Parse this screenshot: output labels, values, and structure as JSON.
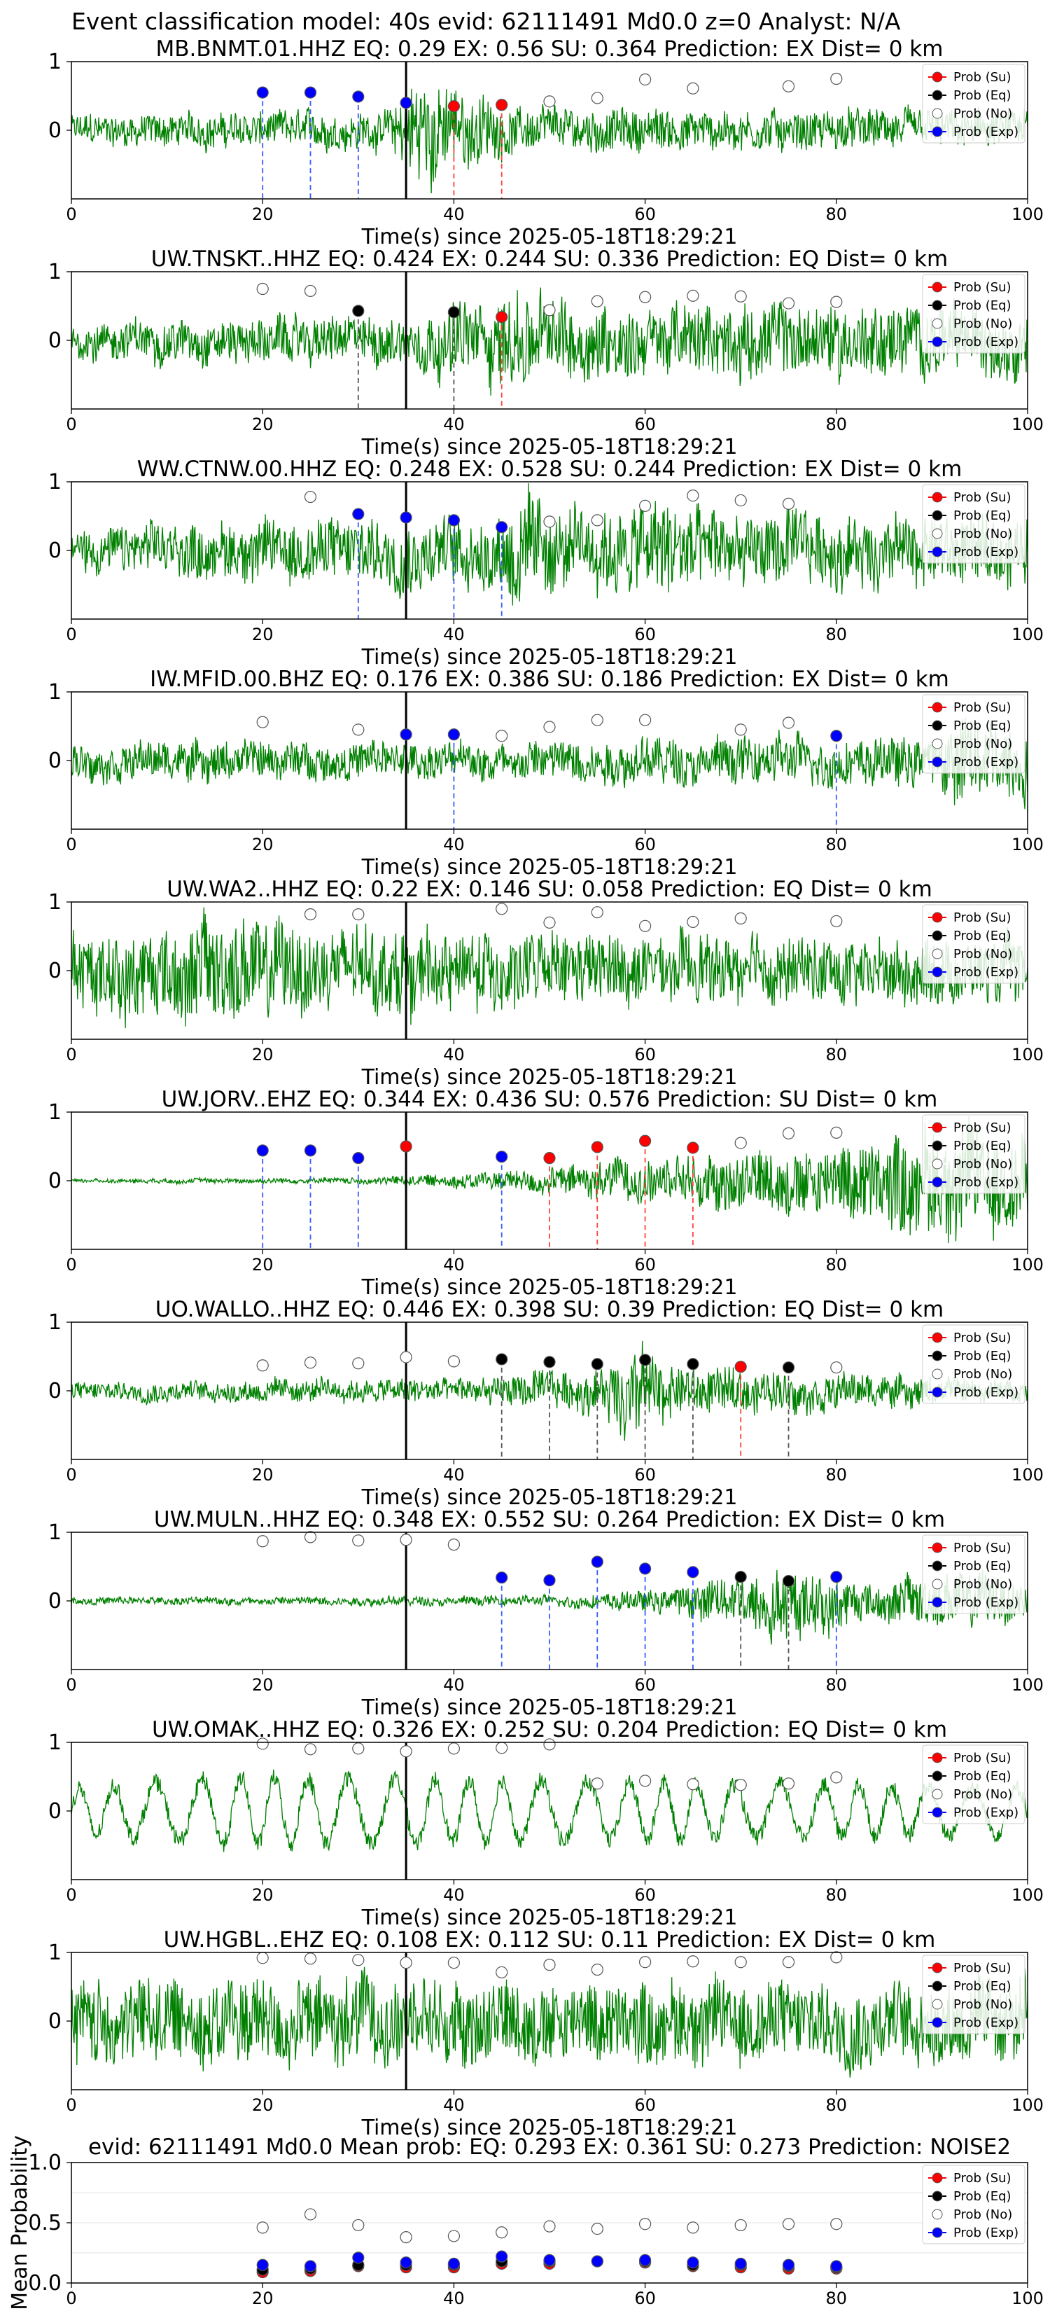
{
  "figure": {
    "suptitle": "Event classification model: 40s evid: 62111491 Md0.0 z=0 Analyst: N/A"
  },
  "colors": {
    "waveform": "#008000",
    "su": "#ff0000",
    "eq": "#000000",
    "no": "#ffffff",
    "exp": "#0000ff",
    "onset": "#000000"
  },
  "chart_data": {
    "type": "line",
    "station_panels": [
      {
        "title": "MB.BNMT.01.HHZ   EQ: 0.29  EX: 0.56  SU: 0.364   Prediction: EX    Dist= 0 km",
        "xlabel": "Time(s) since 2025-05-18T18:29:21",
        "xlim": [
          0,
          100
        ],
        "ylim": [
          -1,
          1
        ],
        "xticks": [
          0,
          20,
          40,
          60,
          80,
          100
        ],
        "yticks": [
          0,
          1
        ],
        "onset": 35,
        "markers": [
          {
            "x": 20,
            "y": 0.55,
            "cls": "exp"
          },
          {
            "x": 25,
            "y": 0.55,
            "cls": "exp"
          },
          {
            "x": 30,
            "y": 0.49,
            "cls": "exp"
          },
          {
            "x": 35,
            "y": 0.4,
            "cls": "exp"
          },
          {
            "x": 40,
            "y": 0.35,
            "cls": "su"
          },
          {
            "x": 45,
            "y": 0.37,
            "cls": "su"
          },
          {
            "x": 50,
            "y": 0.42,
            "cls": "no"
          },
          {
            "x": 55,
            "y": 0.47,
            "cls": "no"
          },
          {
            "x": 60,
            "y": 0.74,
            "cls": "no"
          },
          {
            "x": 65,
            "y": 0.61,
            "cls": "no"
          },
          {
            "x": 75,
            "y": 0.64,
            "cls": "no"
          },
          {
            "x": 80,
            "y": 0.75,
            "cls": "no"
          }
        ],
        "legend": [
          "Prob (Su)",
          "Prob (Eq)",
          "Prob (No)",
          "Prob (Exp)"
        ]
      },
      {
        "title": "UW.TNSKT..HHZ   EQ: 0.424  EX: 0.244  SU: 0.336   Prediction: EQ    Dist= 0 km",
        "xlabel": "Time(s) since 2025-05-18T18:29:21",
        "xlim": [
          0,
          100
        ],
        "ylim": [
          -1,
          1
        ],
        "xticks": [
          0,
          20,
          40,
          60,
          80,
          100
        ],
        "yticks": [
          0,
          1
        ],
        "onset": 35,
        "markers": [
          {
            "x": 20,
            "y": 0.75,
            "cls": "no"
          },
          {
            "x": 25,
            "y": 0.72,
            "cls": "no"
          },
          {
            "x": 30,
            "y": 0.43,
            "cls": "eq"
          },
          {
            "x": 40,
            "y": 0.41,
            "cls": "eq"
          },
          {
            "x": 45,
            "y": 0.34,
            "cls": "su"
          },
          {
            "x": 50,
            "y": 0.44,
            "cls": "no"
          },
          {
            "x": 55,
            "y": 0.57,
            "cls": "no"
          },
          {
            "x": 60,
            "y": 0.63,
            "cls": "no"
          },
          {
            "x": 65,
            "y": 0.65,
            "cls": "no"
          },
          {
            "x": 70,
            "y": 0.64,
            "cls": "no"
          },
          {
            "x": 75,
            "y": 0.54,
            "cls": "no"
          },
          {
            "x": 80,
            "y": 0.56,
            "cls": "no"
          }
        ],
        "legend": [
          "Prob (Su)",
          "Prob (Eq)",
          "Prob (No)",
          "Prob (Exp)"
        ]
      },
      {
        "title": "WW.CTNW.00.HHZ   EQ: 0.248  EX: 0.528  SU: 0.244   Prediction: EX    Dist= 0 km",
        "xlabel": "Time(s) since 2025-05-18T18:29:21",
        "xlim": [
          0,
          100
        ],
        "ylim": [
          -1,
          1
        ],
        "xticks": [
          0,
          20,
          40,
          60,
          80,
          100
        ],
        "yticks": [
          0,
          1
        ],
        "onset": 35,
        "markers": [
          {
            "x": 25,
            "y": 0.78,
            "cls": "no"
          },
          {
            "x": 30,
            "y": 0.53,
            "cls": "exp"
          },
          {
            "x": 35,
            "y": 0.48,
            "cls": "exp"
          },
          {
            "x": 40,
            "y": 0.44,
            "cls": "exp"
          },
          {
            "x": 45,
            "y": 0.34,
            "cls": "exp"
          },
          {
            "x": 50,
            "y": 0.42,
            "cls": "no"
          },
          {
            "x": 55,
            "y": 0.44,
            "cls": "no"
          },
          {
            "x": 60,
            "y": 0.65,
            "cls": "no"
          },
          {
            "x": 65,
            "y": 0.8,
            "cls": "no"
          },
          {
            "x": 70,
            "y": 0.73,
            "cls": "no"
          },
          {
            "x": 75,
            "y": 0.68,
            "cls": "no"
          }
        ],
        "legend": [
          "Prob (Su)",
          "Prob (Eq)",
          "Prob (No)",
          "Prob (Exp)"
        ]
      },
      {
        "title": "IW.MFID.00.BHZ   EQ: 0.176  EX: 0.386  SU: 0.186   Prediction: EX    Dist= 0 km",
        "xlabel": "Time(s) since 2025-05-18T18:29:21",
        "xlim": [
          0,
          100
        ],
        "ylim": [
          -1,
          1
        ],
        "xticks": [
          0,
          20,
          40,
          60,
          80,
          100
        ],
        "yticks": [
          0,
          1
        ],
        "onset": 35,
        "markers": [
          {
            "x": 20,
            "y": 0.56,
            "cls": "no"
          },
          {
            "x": 30,
            "y": 0.45,
            "cls": "no"
          },
          {
            "x": 35,
            "y": 0.38,
            "cls": "exp"
          },
          {
            "x": 40,
            "y": 0.38,
            "cls": "exp"
          },
          {
            "x": 45,
            "y": 0.36,
            "cls": "no"
          },
          {
            "x": 50,
            "y": 0.49,
            "cls": "no"
          },
          {
            "x": 55,
            "y": 0.59,
            "cls": "no"
          },
          {
            "x": 60,
            "y": 0.59,
            "cls": "no"
          },
          {
            "x": 70,
            "y": 0.45,
            "cls": "no"
          },
          {
            "x": 75,
            "y": 0.55,
            "cls": "no"
          },
          {
            "x": 80,
            "y": 0.36,
            "cls": "exp"
          }
        ],
        "legend": [
          "Prob (Su)",
          "Prob (Eq)",
          "Prob (No)",
          "Prob (Exp)"
        ]
      },
      {
        "title": "UW.WA2..HHZ   EQ: 0.22  EX: 0.146  SU: 0.058   Prediction: EQ    Dist= 0 km",
        "xlabel": "Time(s) since 2025-05-18T18:29:21",
        "xlim": [
          0,
          100
        ],
        "ylim": [
          -1,
          1
        ],
        "xticks": [
          0,
          20,
          40,
          60,
          80,
          100
        ],
        "yticks": [
          0,
          1
        ],
        "onset": 35,
        "markers": [
          {
            "x": 25,
            "y": 0.82,
            "cls": "no"
          },
          {
            "x": 30,
            "y": 0.82,
            "cls": "no"
          },
          {
            "x": 45,
            "y": 0.9,
            "cls": "no"
          },
          {
            "x": 50,
            "y": 0.7,
            "cls": "no"
          },
          {
            "x": 55,
            "y": 0.85,
            "cls": "no"
          },
          {
            "x": 60,
            "y": 0.65,
            "cls": "no"
          },
          {
            "x": 65,
            "y": 0.71,
            "cls": "no"
          },
          {
            "x": 70,
            "y": 0.76,
            "cls": "no"
          },
          {
            "x": 80,
            "y": 0.72,
            "cls": "no"
          }
        ],
        "legend": [
          "Prob (Su)",
          "Prob (Eq)",
          "Prob (No)",
          "Prob (Exp)"
        ]
      },
      {
        "title": "UW.JORV..EHZ   EQ: 0.344  EX: 0.436  SU: 0.576   Prediction: SU    Dist= 0 km",
        "xlabel": "Time(s) since 2025-05-18T18:29:21",
        "xlim": [
          0,
          100
        ],
        "ylim": [
          -1,
          1
        ],
        "xticks": [
          0,
          20,
          40,
          60,
          80,
          100
        ],
        "yticks": [
          0,
          1
        ],
        "onset": 35,
        "markers": [
          {
            "x": 20,
            "y": 0.44,
            "cls": "exp"
          },
          {
            "x": 25,
            "y": 0.44,
            "cls": "exp"
          },
          {
            "x": 30,
            "y": 0.33,
            "cls": "exp"
          },
          {
            "x": 35,
            "y": 0.5,
            "cls": "su"
          },
          {
            "x": 45,
            "y": 0.35,
            "cls": "exp"
          },
          {
            "x": 50,
            "y": 0.33,
            "cls": "su"
          },
          {
            "x": 55,
            "y": 0.49,
            "cls": "su"
          },
          {
            "x": 60,
            "y": 0.58,
            "cls": "su"
          },
          {
            "x": 65,
            "y": 0.48,
            "cls": "su"
          },
          {
            "x": 70,
            "y": 0.55,
            "cls": "no"
          },
          {
            "x": 75,
            "y": 0.69,
            "cls": "no"
          },
          {
            "x": 80,
            "y": 0.7,
            "cls": "no"
          }
        ],
        "legend": [
          "Prob (Su)",
          "Prob (Eq)",
          "Prob (No)",
          "Prob (Exp)"
        ]
      },
      {
        "title": "UO.WALLO..HHZ   EQ: 0.446  EX: 0.398  SU: 0.39   Prediction: EQ    Dist= 0 km",
        "xlabel": "Time(s) since 2025-05-18T18:29:21",
        "xlim": [
          0,
          100
        ],
        "ylim": [
          -1,
          1
        ],
        "xticks": [
          0,
          20,
          40,
          60,
          80,
          100
        ],
        "yticks": [
          0,
          1
        ],
        "onset": 35,
        "markers": [
          {
            "x": 20,
            "y": 0.37,
            "cls": "no"
          },
          {
            "x": 25,
            "y": 0.41,
            "cls": "no"
          },
          {
            "x": 30,
            "y": 0.4,
            "cls": "no"
          },
          {
            "x": 35,
            "y": 0.49,
            "cls": "no"
          },
          {
            "x": 40,
            "y": 0.43,
            "cls": "no"
          },
          {
            "x": 45,
            "y": 0.46,
            "cls": "eq"
          },
          {
            "x": 50,
            "y": 0.42,
            "cls": "eq"
          },
          {
            "x": 55,
            "y": 0.39,
            "cls": "eq"
          },
          {
            "x": 60,
            "y": 0.45,
            "cls": "eq"
          },
          {
            "x": 65,
            "y": 0.39,
            "cls": "eq"
          },
          {
            "x": 70,
            "y": 0.35,
            "cls": "su"
          },
          {
            "x": 75,
            "y": 0.34,
            "cls": "eq"
          },
          {
            "x": 80,
            "y": 0.34,
            "cls": "no"
          }
        ],
        "legend": [
          "Prob (Su)",
          "Prob (Eq)",
          "Prob (No)",
          "Prob (Exp)"
        ]
      },
      {
        "title": "UW.MULN..HHZ   EQ: 0.348  EX: 0.552  SU: 0.264   Prediction: EX    Dist= 0 km",
        "xlabel": "Time(s) since 2025-05-18T18:29:21",
        "xlim": [
          0,
          100
        ],
        "ylim": [
          -1,
          1
        ],
        "xticks": [
          0,
          20,
          40,
          60,
          80,
          100
        ],
        "yticks": [
          0,
          1
        ],
        "onset": 35,
        "markers": [
          {
            "x": 20,
            "y": 0.87,
            "cls": "no"
          },
          {
            "x": 25,
            "y": 0.93,
            "cls": "no"
          },
          {
            "x": 30,
            "y": 0.88,
            "cls": "no"
          },
          {
            "x": 35,
            "y": 0.89,
            "cls": "no"
          },
          {
            "x": 40,
            "y": 0.82,
            "cls": "no"
          },
          {
            "x": 45,
            "y": 0.34,
            "cls": "exp"
          },
          {
            "x": 50,
            "y": 0.3,
            "cls": "exp"
          },
          {
            "x": 55,
            "y": 0.57,
            "cls": "exp"
          },
          {
            "x": 60,
            "y": 0.47,
            "cls": "exp"
          },
          {
            "x": 65,
            "y": 0.42,
            "cls": "exp"
          },
          {
            "x": 70,
            "y": 0.35,
            "cls": "eq"
          },
          {
            "x": 75,
            "y": 0.29,
            "cls": "eq"
          },
          {
            "x": 80,
            "y": 0.35,
            "cls": "exp"
          }
        ],
        "legend": [
          "Prob (Su)",
          "Prob (Eq)",
          "Prob (No)",
          "Prob (Exp)"
        ]
      },
      {
        "title": "UW.OMAK..HHZ   EQ: 0.326  EX: 0.252  SU: 0.204   Prediction: EQ    Dist= 0 km",
        "xlabel": "Time(s) since 2025-05-18T18:29:21",
        "xlim": [
          0,
          100
        ],
        "ylim": [
          -1,
          1
        ],
        "xticks": [
          0,
          20,
          40,
          60,
          80,
          100
        ],
        "yticks": [
          0,
          1
        ],
        "onset": 35,
        "markers": [
          {
            "x": 20,
            "y": 0.98,
            "cls": "no"
          },
          {
            "x": 25,
            "y": 0.9,
            "cls": "no"
          },
          {
            "x": 30,
            "y": 0.91,
            "cls": "no"
          },
          {
            "x": 35,
            "y": 0.87,
            "cls": "no"
          },
          {
            "x": 40,
            "y": 0.91,
            "cls": "no"
          },
          {
            "x": 45,
            "y": 0.92,
            "cls": "no"
          },
          {
            "x": 50,
            "y": 0.97,
            "cls": "no"
          },
          {
            "x": 55,
            "y": 0.4,
            "cls": "no"
          },
          {
            "x": 60,
            "y": 0.44,
            "cls": "no"
          },
          {
            "x": 65,
            "y": 0.39,
            "cls": "no"
          },
          {
            "x": 70,
            "y": 0.38,
            "cls": "no"
          },
          {
            "x": 75,
            "y": 0.4,
            "cls": "no"
          },
          {
            "x": 80,
            "y": 0.49,
            "cls": "no"
          }
        ],
        "legend": [
          "Prob (Su)",
          "Prob (Eq)",
          "Prob (No)",
          "Prob (Exp)"
        ]
      },
      {
        "title": "UW.HGBL..EHZ   EQ: 0.108  EX: 0.112  SU: 0.11   Prediction: EX    Dist= 0 km",
        "xlabel": "Time(s) since 2025-05-18T18:29:21",
        "xlim": [
          0,
          100
        ],
        "ylim": [
          -1,
          1
        ],
        "xticks": [
          0,
          20,
          40,
          60,
          80,
          100
        ],
        "yticks": [
          0,
          1
        ],
        "onset": 35,
        "markers": [
          {
            "x": 20,
            "y": 0.92,
            "cls": "no"
          },
          {
            "x": 25,
            "y": 0.91,
            "cls": "no"
          },
          {
            "x": 30,
            "y": 0.89,
            "cls": "no"
          },
          {
            "x": 35,
            "y": 0.85,
            "cls": "no"
          },
          {
            "x": 40,
            "y": 0.85,
            "cls": "no"
          },
          {
            "x": 45,
            "y": 0.71,
            "cls": "no"
          },
          {
            "x": 50,
            "y": 0.82,
            "cls": "no"
          },
          {
            "x": 55,
            "y": 0.75,
            "cls": "no"
          },
          {
            "x": 60,
            "y": 0.86,
            "cls": "no"
          },
          {
            "x": 65,
            "y": 0.87,
            "cls": "no"
          },
          {
            "x": 70,
            "y": 0.86,
            "cls": "no"
          },
          {
            "x": 75,
            "y": 0.86,
            "cls": "no"
          },
          {
            "x": 80,
            "y": 0.93,
            "cls": "no"
          }
        ],
        "legend": [
          "Prob (Su)",
          "Prob (Eq)",
          "Prob (No)",
          "Prob (Exp)"
        ]
      }
    ],
    "mean_panel": {
      "type": "scatter",
      "title": "evid: 62111491  Md0.0   Mean prob:   EQ: 0.293  EX: 0.361  SU: 0.273   Prediction: NOISE2",
      "ylabel": "Mean Probability",
      "xlim": [
        0,
        100
      ],
      "ylim": [
        0,
        1
      ],
      "xticks": [
        0,
        20,
        40,
        60,
        80,
        100
      ],
      "yticks": [
        "0.0",
        "0.5",
        "1.0"
      ],
      "x": [
        20,
        25,
        30,
        35,
        40,
        45,
        50,
        55,
        60,
        65,
        70,
        75,
        80
      ],
      "series": [
        {
          "name": "Prob (Su)",
          "cls": "su",
          "values": [
            0.09,
            0.1,
            0.14,
            0.13,
            0.13,
            0.16,
            0.16,
            0.18,
            0.17,
            0.14,
            0.13,
            0.12,
            0.12
          ]
        },
        {
          "name": "Prob (Eq)",
          "cls": "eq",
          "values": [
            0.11,
            0.12,
            0.15,
            0.15,
            0.15,
            0.18,
            0.18,
            0.18,
            0.18,
            0.15,
            0.15,
            0.14,
            0.13
          ]
        },
        {
          "name": "Prob (No)",
          "cls": "no",
          "values": [
            0.46,
            0.57,
            0.48,
            0.38,
            0.39,
            0.42,
            0.47,
            0.45,
            0.49,
            0.46,
            0.48,
            0.49,
            0.49
          ]
        },
        {
          "name": "Prob (Exp)",
          "cls": "exp",
          "values": [
            0.15,
            0.14,
            0.21,
            0.17,
            0.16,
            0.22,
            0.19,
            0.18,
            0.19,
            0.17,
            0.16,
            0.15,
            0.14
          ]
        }
      ],
      "legend": [
        "Prob (Su)",
        "Prob (Eq)",
        "Prob (No)",
        "Prob (Exp)"
      ]
    }
  }
}
